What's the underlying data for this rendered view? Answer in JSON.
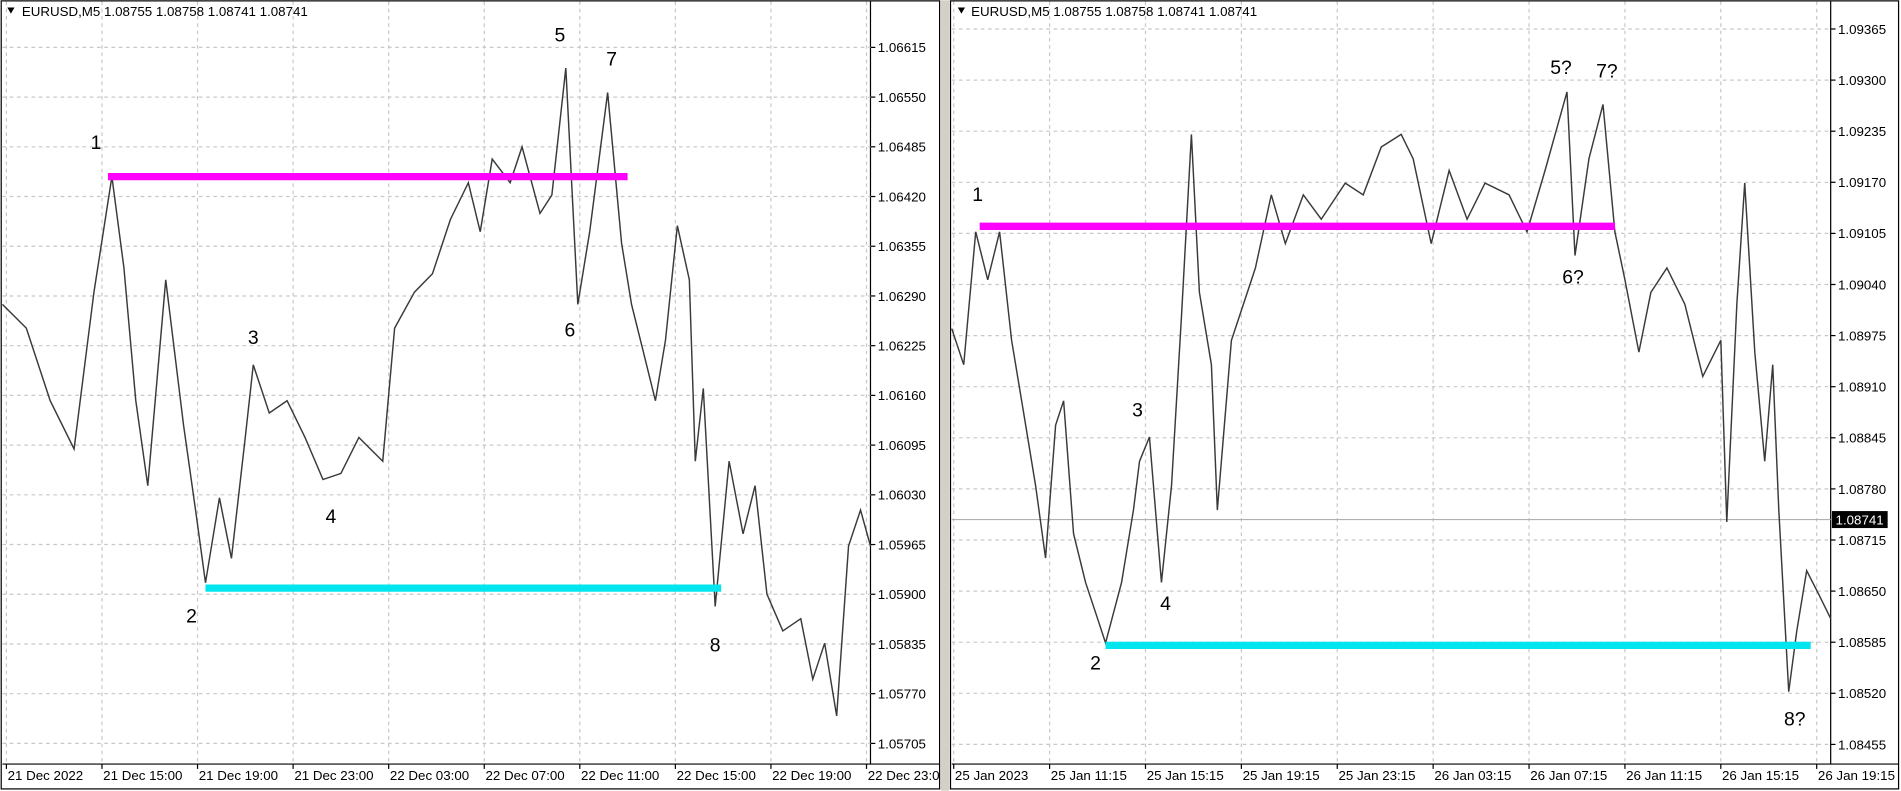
{
  "chart_data": [
    {
      "type": "line",
      "header": "EURUSD,M5  1.08755 1.08758 1.08741 1.08741",
      "color": "#3a3a3a",
      "x": [
        0,
        12,
        24,
        36,
        46,
        55,
        61,
        67,
        73,
        82,
        91,
        97,
        102,
        109,
        115,
        122,
        126,
        134,
        143,
        152,
        161,
        170,
        179,
        191,
        197,
        207,
        216,
        225,
        234,
        240,
        246,
        255,
        261,
        270,
        276,
        283,
        289,
        295,
        304,
        311,
        316,
        322,
        328,
        333,
        339,
        345,
        348,
        352,
        358,
        365,
        372,
        378,
        384,
        392,
        401,
        407,
        413,
        419,
        425,
        431,
        436
      ],
      "values": [
        1.06279,
        1.06248,
        1.06153,
        1.0609,
        1.06295,
        1.06446,
        1.06327,
        1.06153,
        1.06042,
        1.06311,
        1.06121,
        1.0601,
        1.05915,
        1.06026,
        1.05947,
        1.06105,
        1.062,
        1.06137,
        1.06153,
        1.06105,
        1.0605,
        1.06058,
        1.06105,
        1.06074,
        1.06248,
        1.06295,
        1.06319,
        1.0639,
        1.06438,
        1.06374,
        1.06469,
        1.06438,
        1.06485,
        1.06398,
        1.06422,
        1.06588,
        1.06279,
        1.06374,
        1.06556,
        1.06359,
        1.06279,
        1.06216,
        1.06153,
        1.06232,
        1.06382,
        1.06311,
        1.06074,
        1.06169,
        1.05884,
        1.06074,
        1.05979,
        1.06042,
        1.059,
        1.05852,
        1.05868,
        1.05789,
        1.05836,
        1.05741,
        1.05963,
        1.0601,
        1.05963
      ],
      "xlim": [
        0,
        436
      ],
      "xticks": [
        {
          "value": 2,
          "label": "21 Dec 2022"
        },
        {
          "value": 50,
          "label": "21 Dec 15:00"
        },
        {
          "value": 98,
          "label": "21 Dec 19:00"
        },
        {
          "value": 146,
          "label": "21 Dec 23:00"
        },
        {
          "value": 194,
          "label": "22 Dec 03:00"
        },
        {
          "value": 242,
          "label": "22 Dec 07:00"
        },
        {
          "value": 290,
          "label": "22 Dec 11:00"
        },
        {
          "value": 338,
          "label": "22 Dec 15:00"
        },
        {
          "value": 386,
          "label": "22 Dec 19:00"
        },
        {
          "value": 434,
          "label": "22 Dec 23:0"
        }
      ],
      "ylim": [
        1.05678,
        1.06675
      ],
      "yticks": [
        1.06615,
        {
          "value": 1.0655,
          "label": "1.06550"
        },
        1.06485,
        {
          "value": 1.0642,
          "label": "1.06420"
        },
        1.06355,
        {
          "value": 1.0629,
          "label": "1.06290"
        },
        1.06225,
        {
          "value": 1.0616,
          "label": "1.06160"
        },
        1.06095,
        {
          "value": 1.0603,
          "label": "1.06030"
        },
        1.05965,
        {
          "value": 1.059,
          "label": "1.05900"
        },
        1.05835,
        {
          "value": 1.0577,
          "label": "1.05770"
        },
        1.05705
      ],
      "grid": true,
      "hlines": [
        {
          "y": 1.06446,
          "x": [
            53,
            314
          ],
          "color": "#ff00ff"
        },
        {
          "y": 1.05908,
          "x": [
            102,
            361
          ],
          "color": "#00e5ee"
        }
      ],
      "annotations": [
        {
          "text": "1",
          "x": 47,
          "y": 1.06482
        },
        {
          "text": "2",
          "x": 95,
          "y": 1.05863
        },
        {
          "text": "3",
          "x": 126,
          "y": 1.06227
        },
        {
          "text": "4",
          "x": 165,
          "y": 1.05993
        },
        {
          "text": "5",
          "x": 280,
          "y": 1.06623
        },
        {
          "text": "6",
          "x": 285,
          "y": 1.06237
        },
        {
          "text": "7",
          "x": 306,
          "y": 1.06591
        },
        {
          "text": "8",
          "x": 358,
          "y": 1.05825
        }
      ]
    },
    {
      "type": "line",
      "header": "EURUSD,M5  1.08755 1.08758 1.08741 1.08741",
      "color": "#3a3a3a",
      "x": [
        0,
        6,
        12,
        18,
        24,
        30,
        36,
        42,
        47,
        52,
        56,
        61,
        67,
        73,
        77,
        85,
        91,
        94,
        99,
        105,
        110,
        115,
        120,
        124,
        130,
        133,
        140,
        146,
        152,
        160,
        167,
        176,
        185,
        197,
        206,
        215,
        225,
        231,
        240,
        249,
        258,
        267,
        279,
        288,
        297,
        308,
        312,
        319,
        326,
        332,
        337,
        344,
        350,
        358,
        367,
        376,
        385,
        388,
        393,
        397,
        402,
        407,
        411,
        414,
        419,
        423,
        428,
        434,
        440
      ],
      "values": [
        1.08984,
        1.08938,
        1.09107,
        1.09046,
        1.09107,
        1.08969,
        1.08877,
        1.08784,
        1.08692,
        1.08861,
        1.08892,
        1.08723,
        1.08661,
        1.08615,
        1.08584,
        1.08661,
        1.08753,
        1.08815,
        1.08846,
        1.08661,
        1.08784,
        1.08999,
        1.09231,
        1.0903,
        1.08938,
        1.08753,
        1.08969,
        1.09015,
        1.09061,
        1.09154,
        1.09092,
        1.09154,
        1.09123,
        1.09169,
        1.09154,
        1.09215,
        1.09231,
        1.092,
        1.09092,
        1.09185,
        1.09123,
        1.09169,
        1.09154,
        1.09107,
        1.09185,
        1.09285,
        1.09077,
        1.092,
        1.09269,
        1.09107,
        1.09046,
        1.08954,
        1.0903,
        1.09061,
        1.09015,
        1.08923,
        1.08969,
        1.08738,
        1.09015,
        1.09169,
        1.08954,
        1.08815,
        1.08938,
        1.08753,
        1.08522,
        1.08599,
        1.08676,
        1.08646,
        1.08615
      ],
      "xlim": [
        0,
        440
      ],
      "xticks": [
        {
          "value": 1,
          "label": "25 Jan 2023"
        },
        {
          "value": 49,
          "label": "25 Jan 11:15"
        },
        {
          "value": 97,
          "label": "25 Jan 15:15"
        },
        {
          "value": 145,
          "label": "25 Jan 19:15"
        },
        {
          "value": 193,
          "label": "25 Jan 23:15"
        },
        {
          "value": 241,
          "label": "26 Jan 03:15"
        },
        {
          "value": 289,
          "label": "26 Jan 07:15"
        },
        {
          "value": 337,
          "label": "26 Jan 11:15"
        },
        {
          "value": 385,
          "label": "26 Jan 15:15"
        },
        {
          "value": 433,
          "label": "26 Jan 19:15"
        }
      ],
      "ylim": [
        1.0843,
        1.094
      ],
      "yticks": [
        1.09365,
        {
          "value": 1.093,
          "label": "1.09300"
        },
        1.09235,
        {
          "value": 1.0917,
          "label": "1.09170"
        },
        1.09105,
        {
          "value": 1.0904,
          "label": "1.09040"
        },
        1.08975,
        {
          "value": 1.0891,
          "label": "1.08910"
        },
        1.08845,
        {
          "value": 1.0878,
          "label": "1.08780"
        },
        1.08715,
        {
          "value": 1.0865,
          "label": "1.08650"
        },
        1.08585,
        {
          "value": 1.0852,
          "label": "1.08520"
        },
        1.08455
      ],
      "grid": true,
      "current_price": 1.08741,
      "hlines": [
        {
          "y": 1.09114,
          "x": [
            14,
            332
          ],
          "color": "#ff00ff"
        },
        {
          "y": 1.08581,
          "x": [
            77,
            430
          ],
          "color": "#00e5ee"
        }
      ],
      "annotations": [
        {
          "text": "1",
          "x": 13,
          "y": 1.09146
        },
        {
          "text": "2",
          "x": 72,
          "y": 1.0855
        },
        {
          "text": "3",
          "x": 93,
          "y": 1.08872
        },
        {
          "text": "4",
          "x": 107,
          "y": 1.08626
        },
        {
          "text": "5?",
          "x": 305,
          "y": 1.09308
        },
        {
          "text": "6?",
          "x": 311,
          "y": 1.09041
        },
        {
          "text": "7?",
          "x": 328,
          "y": 1.09303
        },
        {
          "text": "8?",
          "x": 422,
          "y": 1.08479
        }
      ]
    }
  ]
}
